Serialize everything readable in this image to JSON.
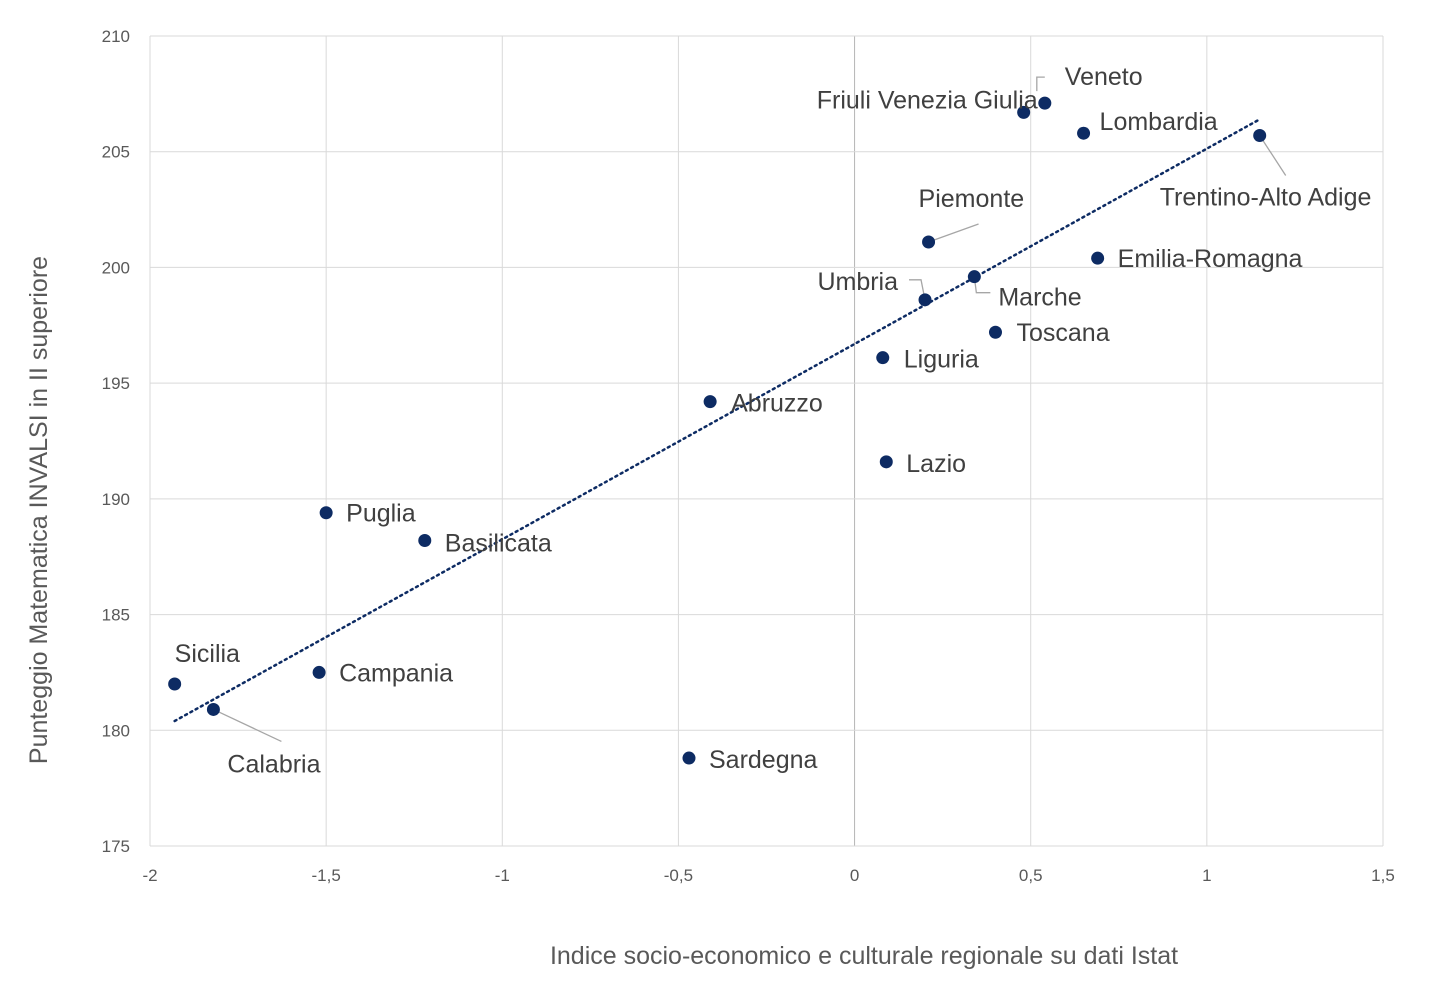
{
  "chart_data": {
    "type": "scatter",
    "xlabel": "Indice socio-economico e culturale regionale su dati Istat",
    "ylabel": "Punteggio Matematica INVALSI in II superiore",
    "xlim": [
      -2,
      1.5
    ],
    "ylim": [
      175,
      210
    ],
    "xticks": [
      "-2",
      "-1,5",
      "-1",
      "-0,5",
      "0",
      "0,5",
      "1",
      "1,5"
    ],
    "yticks": [
      "175",
      "180",
      "185",
      "190",
      "195",
      "200",
      "205",
      "210"
    ],
    "grid": true,
    "point_color": "#0d2b63",
    "trendline": {
      "style": "dotted",
      "x": [
        -1.93,
        1.15
      ],
      "y": [
        180.4,
        206.4
      ]
    },
    "points": [
      {
        "label": "Veneto",
        "x": 0.54,
        "y": 207.1
      },
      {
        "label": "Friuli Venezia Giulia",
        "x": 0.48,
        "y": 206.7
      },
      {
        "label": "Lombardia",
        "x": 0.65,
        "y": 205.8
      },
      {
        "label": "Trentino-Alto Adige",
        "x": 1.15,
        "y": 205.7
      },
      {
        "label": "Piemonte",
        "x": 0.21,
        "y": 201.1
      },
      {
        "label": "Emilia-Romagna",
        "x": 0.69,
        "y": 200.4
      },
      {
        "label": "Marche",
        "x": 0.34,
        "y": 199.6
      },
      {
        "label": "Umbria",
        "x": 0.2,
        "y": 198.6
      },
      {
        "label": "Toscana",
        "x": 0.4,
        "y": 197.2
      },
      {
        "label": "Liguria",
        "x": 0.08,
        "y": 196.1
      },
      {
        "label": "Abruzzo",
        "x": -0.41,
        "y": 194.2
      },
      {
        "label": "Lazio",
        "x": 0.09,
        "y": 191.6
      },
      {
        "label": "Puglia",
        "x": -1.5,
        "y": 189.4
      },
      {
        "label": "Basilicata",
        "x": -1.22,
        "y": 188.2
      },
      {
        "label": "Sicilia",
        "x": -1.93,
        "y": 182.0
      },
      {
        "label": "Campania",
        "x": -1.52,
        "y": 182.5
      },
      {
        "label": "Calabria",
        "x": -1.82,
        "y": 180.9
      },
      {
        "label": "Sardegna",
        "x": -0.47,
        "y": 178.8
      }
    ]
  }
}
